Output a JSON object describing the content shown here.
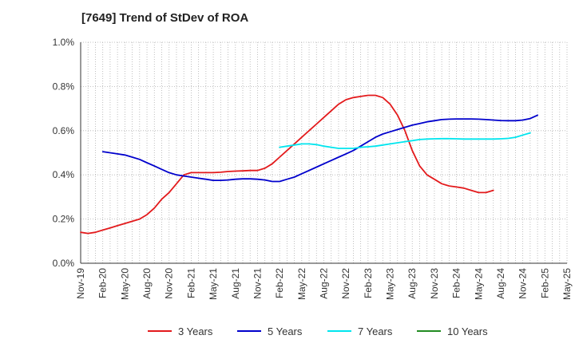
{
  "chart_data": {
    "type": "line",
    "title": "[7649]  Trend of StDev of ROA",
    "xlabel": "",
    "ylabel": "",
    "x_ticks": [
      "Nov-19",
      "Feb-20",
      "May-20",
      "Aug-20",
      "Nov-20",
      "Feb-21",
      "May-21",
      "Aug-21",
      "Nov-21",
      "Feb-22",
      "May-22",
      "Aug-22",
      "Nov-22",
      "Feb-23",
      "May-23",
      "Aug-23",
      "Nov-23",
      "Feb-24",
      "May-24",
      "Aug-24",
      "Nov-24",
      "Feb-25",
      "May-25"
    ],
    "y_ticks": [
      "0.0%",
      "0.2%",
      "0.4%",
      "0.6%",
      "0.8%",
      "1.0%"
    ],
    "ylim": [
      0,
      1.0
    ],
    "grid": true,
    "legend_position": "bottom",
    "series": [
      {
        "name": "3 Years",
        "color": "#e31a1c",
        "values": [
          0.14,
          0.135,
          0.14,
          0.15,
          0.16,
          0.17,
          0.18,
          0.19,
          0.2,
          0.22,
          0.25,
          0.29,
          0.32,
          0.36,
          0.4,
          0.41,
          0.41,
          0.41,
          0.41,
          0.412,
          0.415,
          0.417,
          0.418,
          0.42,
          0.42,
          0.43,
          0.45,
          0.48,
          0.51,
          0.54,
          0.57,
          0.6,
          0.63,
          0.66,
          0.69,
          0.72,
          0.74,
          0.75,
          0.755,
          0.76,
          0.76,
          0.75,
          0.72,
          0.67,
          0.6,
          0.51,
          0.44,
          0.4,
          0.38,
          0.36,
          0.35,
          0.345,
          0.34,
          0.33,
          0.32,
          0.32,
          0.33
        ]
      },
      {
        "name": "5 Years",
        "color": "#0000cc",
        "values": [
          null,
          null,
          null,
          null,
          null,
          null,
          null,
          null,
          null,
          null,
          null,
          null,
          null,
          null,
          null,
          null,
          null,
          null,
          null,
          null,
          null,
          null,
          null,
          null,
          null,
          null,
          null,
          null,
          null,
          null,
          null,
          null,
          null,
          null,
          null,
          null,
          null,
          null,
          null,
          null,
          null,
          null,
          null,
          null,
          null,
          null,
          null,
          null,
          null,
          null,
          null,
          null,
          null,
          null,
          null,
          null,
          null
        ]
      },
      {
        "name": "7 Years",
        "color": "#00e5ee",
        "values": []
      },
      {
        "name": "10 Years",
        "color": "#228b22",
        "values": []
      }
    ]
  }
}
